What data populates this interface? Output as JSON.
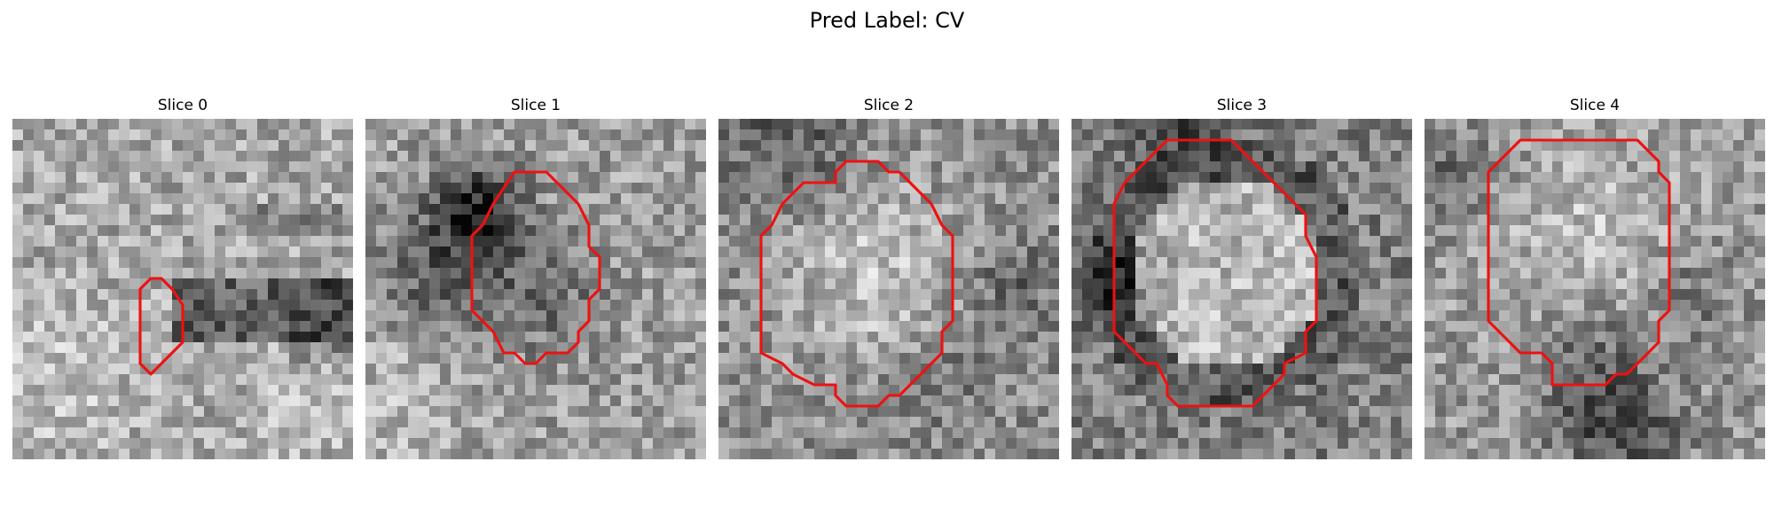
{
  "figure": {
    "suptitle": "Pred Label: CV"
  },
  "colors": {
    "contour": "#ee1111",
    "background": "#ffffff"
  },
  "panels": [
    {
      "title": "Slice 0",
      "seed": 11,
      "pattern": "bright-left-dark-bar",
      "contour": [
        [
          13,
          15
        ],
        [
          14,
          15
        ],
        [
          15,
          16
        ],
        [
          16,
          17.5
        ],
        [
          16,
          21
        ],
        [
          14,
          23
        ],
        [
          13,
          24
        ],
        [
          12,
          23
        ],
        [
          12,
          16
        ]
      ]
    },
    {
      "title": "Slice 1",
      "seed": 23,
      "pattern": "dark-topleft-blob",
      "contour": [
        [
          14,
          5
        ],
        [
          17,
          5
        ],
        [
          20,
          8
        ],
        [
          21,
          10
        ],
        [
          21,
          12
        ],
        [
          22,
          13
        ],
        [
          22,
          16
        ],
        [
          21,
          17
        ],
        [
          21,
          19
        ],
        [
          20,
          20
        ],
        [
          20,
          21
        ],
        [
          19,
          22
        ],
        [
          17,
          22
        ],
        [
          16,
          23
        ],
        [
          15,
          23
        ],
        [
          14,
          22
        ],
        [
          13,
          22
        ],
        [
          12,
          20
        ],
        [
          10,
          18
        ],
        [
          10,
          11
        ],
        [
          11,
          10
        ],
        [
          12,
          8
        ]
      ]
    },
    {
      "title": "Slice 2",
      "seed": 37,
      "pattern": "bright-center",
      "contour": [
        [
          12,
          4
        ],
        [
          15,
          4
        ],
        [
          16,
          5
        ],
        [
          17,
          5
        ],
        [
          19,
          7
        ],
        [
          20,
          8
        ],
        [
          21,
          10
        ],
        [
          22,
          11
        ],
        [
          22,
          19
        ],
        [
          21,
          20
        ],
        [
          21,
          22
        ],
        [
          19,
          24
        ],
        [
          18,
          25
        ],
        [
          17,
          26
        ],
        [
          16,
          26
        ],
        [
          15,
          27
        ],
        [
          12,
          27
        ],
        [
          11,
          26
        ],
        [
          11,
          25
        ],
        [
          9,
          25
        ],
        [
          7,
          24
        ],
        [
          6,
          23
        ],
        [
          4,
          22
        ],
        [
          4,
          11
        ],
        [
          5,
          10
        ],
        [
          6,
          8
        ],
        [
          8,
          6
        ],
        [
          11,
          6
        ],
        [
          11,
          5
        ]
      ]
    },
    {
      "title": "Slice 3",
      "seed": 49,
      "pattern": "bright-center-dark-ring",
      "contour": [
        [
          9,
          2
        ],
        [
          15,
          2
        ],
        [
          17,
          4
        ],
        [
          19,
          6
        ],
        [
          21,
          8
        ],
        [
          22,
          9
        ],
        [
          22,
          11
        ],
        [
          23,
          13
        ],
        [
          23,
          19
        ],
        [
          22,
          20
        ],
        [
          22,
          22
        ],
        [
          20,
          23
        ],
        [
          20,
          24
        ],
        [
          18,
          26
        ],
        [
          17,
          27
        ],
        [
          10,
          27
        ],
        [
          9,
          26
        ],
        [
          9,
          25
        ],
        [
          8,
          23
        ],
        [
          7,
          23
        ],
        [
          6,
          22
        ],
        [
          5,
          21
        ],
        [
          4,
          20
        ],
        [
          4,
          8
        ],
        [
          5,
          6
        ],
        [
          6,
          5
        ],
        [
          7,
          4
        ],
        [
          8,
          3
        ]
      ]
    },
    {
      "title": "Slice 4",
      "seed": 61,
      "pattern": "bright-center-dark-bottom",
      "contour": [
        [
          9,
          2
        ],
        [
          20,
          2
        ],
        [
          21,
          3
        ],
        [
          22,
          4
        ],
        [
          22,
          5
        ],
        [
          23,
          6
        ],
        [
          23,
          18
        ],
        [
          22,
          19
        ],
        [
          22,
          21
        ],
        [
          21,
          22
        ],
        [
          19,
          24
        ],
        [
          18,
          24
        ],
        [
          17,
          25
        ],
        [
          12,
          25
        ],
        [
          12,
          23
        ],
        [
          11,
          22
        ],
        [
          9,
          22
        ],
        [
          8,
          21
        ],
        [
          7,
          20
        ],
        [
          6,
          19
        ],
        [
          6,
          5
        ],
        [
          7,
          4
        ]
      ]
    }
  ]
}
